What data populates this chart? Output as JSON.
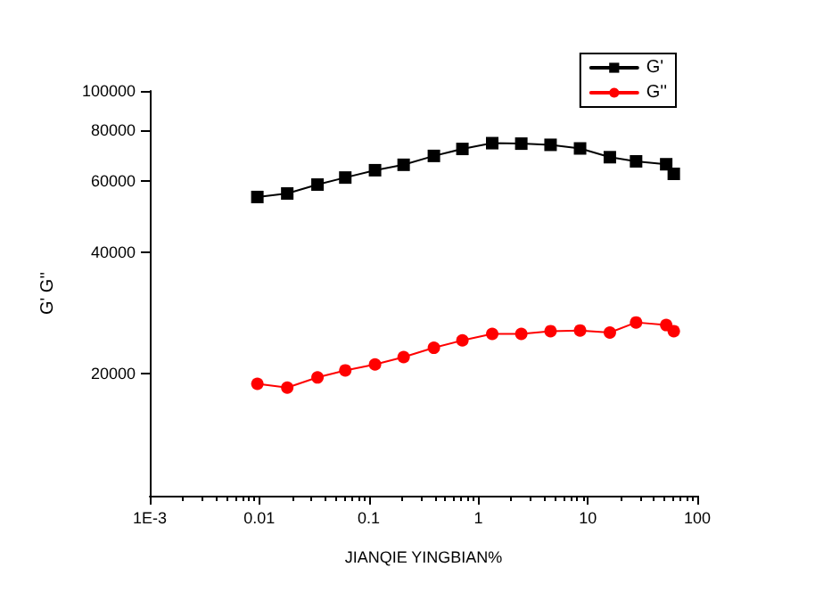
{
  "chart_data": {
    "type": "line",
    "xlabel": "JIANQIE YINGBIAN%",
    "ylabel": "G' G''",
    "x": [
      0.0096,
      0.018,
      0.034,
      0.061,
      0.114,
      0.208,
      0.393,
      0.716,
      1.34,
      2.47,
      4.57,
      8.5,
      15.9,
      27.6,
      52,
      61
    ],
    "series": [
      {
        "name": "G'",
        "color": "#000000",
        "marker": "square",
        "values": [
          54700,
          55800,
          58700,
          61100,
          63700,
          65700,
          69100,
          71900,
          74300,
          74100,
          73600,
          72100,
          68600,
          67000,
          65900,
          62400
        ]
      },
      {
        "name": "G''",
        "color": "#ff0000",
        "marker": "circle",
        "values": [
          18900,
          18500,
          19600,
          20400,
          21100,
          22000,
          23200,
          24200,
          25100,
          25100,
          25500,
          25600,
          25300,
          26800,
          26400,
          25500
        ]
      }
    ],
    "log": "xy",
    "xlim": [
      0.001,
      100
    ],
    "xticks": [
      {
        "value": 0.001,
        "label": "1E-3"
      },
      0.01,
      0.1,
      1,
      10,
      100
    ],
    "ylim": [
      10000,
      100000
    ],
    "yticks": [
      20000,
      40000,
      60000,
      80000,
      100000
    ],
    "grid": false,
    "legend": "top right",
    "line_style": "solid"
  }
}
